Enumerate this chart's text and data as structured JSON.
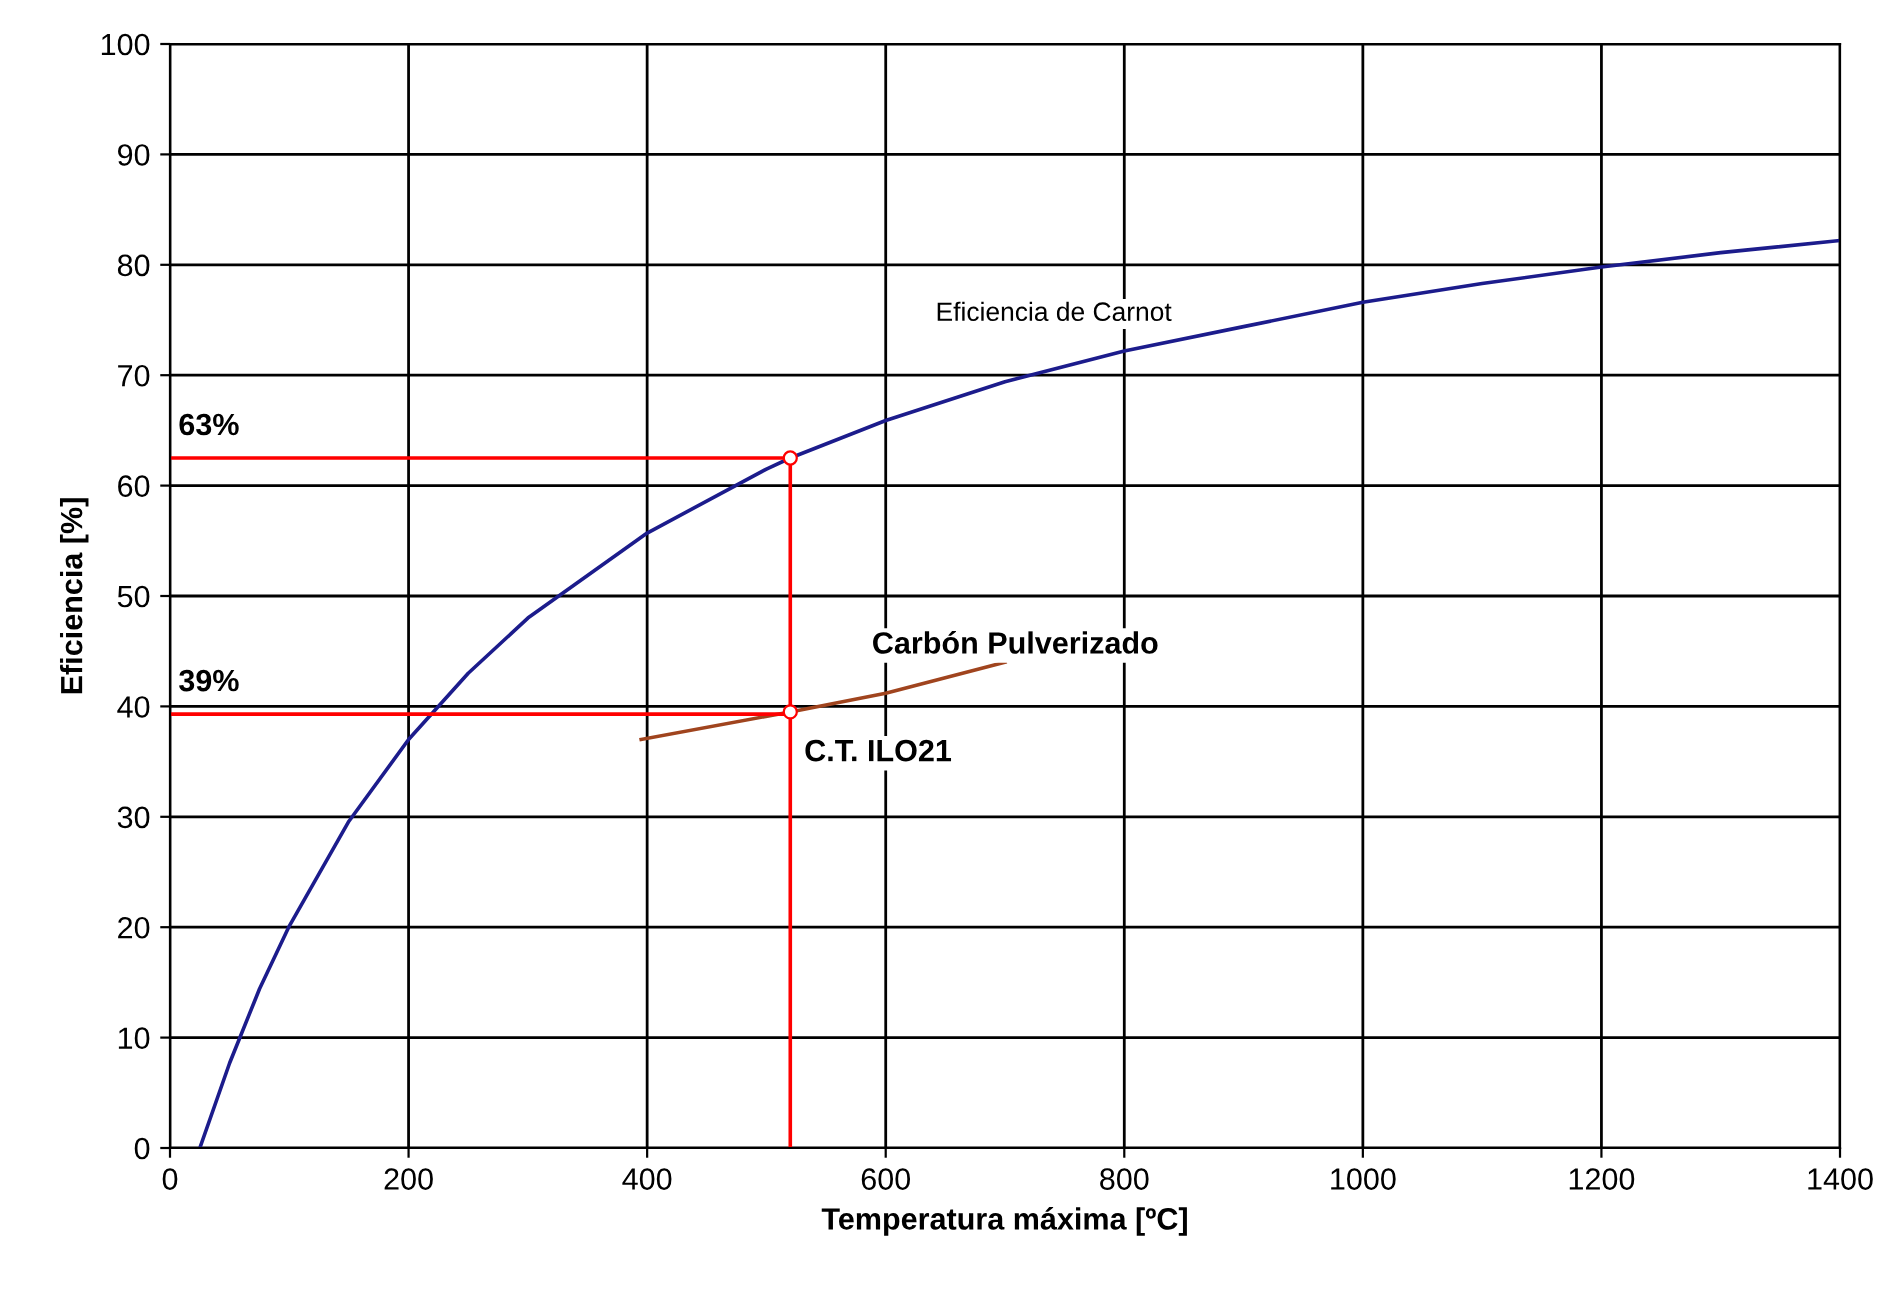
{
  "chart_data": {
    "type": "line",
    "xlabel": "Temperatura máxima [ºC]",
    "ylabel": "Eficiencia [%]",
    "xlim": [
      0,
      1400
    ],
    "xticks": [
      0,
      200,
      400,
      600,
      800,
      1000,
      1200,
      1400
    ],
    "ylim": [
      0,
      100
    ],
    "yticks": [
      0,
      10,
      20,
      30,
      40,
      50,
      60,
      70,
      80,
      90,
      100
    ],
    "grid": true,
    "marker": "none",
    "line_style": "solid",
    "series": [
      {
        "color": "#1c1c8c",
        "x": [
          25,
          50,
          75,
          100,
          150,
          200,
          250,
          300,
          400,
          500,
          520,
          600,
          700,
          800,
          900,
          1000,
          1100,
          1200,
          1300,
          1400
        ],
        "values": [
          0,
          7.7,
          14.4,
          20.1,
          29.6,
          37.0,
          43.0,
          48.0,
          55.7,
          61.5,
          62.5,
          65.9,
          69.4,
          72.2,
          74.4,
          76.6,
          78.3,
          79.8,
          81.1,
          82.2
        ]
      },
      {
        "color": "#a0441e",
        "x": [
          395,
          520,
          600,
          700
        ],
        "values": [
          37.0,
          39.5,
          41.2,
          44.0
        ]
      },
      {
        "color": "#ff0000",
        "x": [
          0,
          520,
          520
        ],
        "values": [
          62.5,
          62.5,
          0
        ]
      },
      {
        "color": "#ff0000",
        "x": [
          0,
          520
        ],
        "values": [
          39.3,
          39.3
        ]
      },
      {
        "type": "scatter",
        "marker": "circle",
        "color": "#ff0000",
        "x": [
          520,
          520
        ],
        "values": [
          62.5,
          39.5
        ]
      }
    ],
    "annotations": [
      {
        "text": "Eficiencia de Carnot",
        "x": 700,
        "y": 69.4
      },
      {
        "text": "Carbón Pulverizado",
        "x": 600,
        "y": 41.2
      },
      {
        "text": "C.T. ILO21",
        "x": 520,
        "y": 39.5
      },
      {
        "text": "63%",
        "x": 0,
        "y": 62.5
      },
      {
        "text": "39%",
        "x": 0,
        "y": 39.3
      }
    ]
  }
}
